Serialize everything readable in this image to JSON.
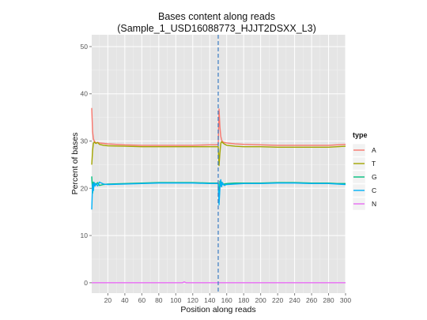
{
  "chart_data": {
    "type": "line",
    "title": "Bases content along reads",
    "subtitle": "(Sample_1_USD16088773_HJJT2DSXX_L3)",
    "xlabel": "Position along reads",
    "ylabel": "Percent of bases",
    "xlim": [
      1,
      300
    ],
    "ylim": [
      -2.2,
      52.5
    ],
    "x_ticks": [
      20,
      40,
      60,
      80,
      100,
      120,
      140,
      160,
      180,
      200,
      220,
      240,
      260,
      280,
      300
    ],
    "y_ticks": [
      0,
      10,
      20,
      30,
      40,
      50
    ],
    "grid": true,
    "legend_title": "type",
    "legend_position": "right",
    "vline_x": 150,
    "series": [
      {
        "name": "A",
        "color": "#F8766D",
        "x": [
          1,
          2,
          3,
          4,
          5,
          6,
          8,
          10,
          15,
          20,
          40,
          60,
          80,
          100,
          120,
          140,
          148,
          150,
          151,
          152,
          153,
          154,
          155,
          157,
          160,
          170,
          180,
          200,
          220,
          240,
          260,
          280,
          290,
          300
        ],
        "values": [
          37,
          32,
          30.5,
          30,
          29.8,
          29.6,
          29.7,
          29.6,
          29.5,
          29.4,
          29.2,
          29.1,
          29.1,
          29.1,
          29.1,
          29.2,
          29.2,
          29.3,
          36.8,
          33,
          31,
          30.2,
          29.9,
          29.7,
          29.6,
          29.4,
          29.3,
          29.2,
          29.1,
          29.1,
          29.1,
          29.1,
          29.2,
          29.3
        ]
      },
      {
        "name": "T",
        "color": "#A3A500",
        "x": [
          1,
          2,
          3,
          4,
          5,
          6,
          8,
          10,
          15,
          20,
          40,
          60,
          80,
          100,
          120,
          140,
          148,
          150,
          151,
          152,
          153,
          154,
          155,
          157,
          160,
          170,
          180,
          200,
          220,
          240,
          260,
          280,
          290,
          300
        ],
        "values": [
          25,
          28,
          29.5,
          29.8,
          29.6,
          29.5,
          29.7,
          29.3,
          29.1,
          29,
          28.9,
          28.8,
          28.8,
          28.8,
          28.8,
          28.8,
          28.8,
          28.8,
          24.8,
          27.5,
          29.5,
          29.9,
          29.7,
          29.4,
          29.1,
          28.9,
          28.8,
          28.8,
          28.7,
          28.7,
          28.7,
          28.7,
          28.8,
          28.9
        ]
      },
      {
        "name": "G",
        "color": "#00BF7D",
        "x": [
          1,
          2,
          3,
          4,
          5,
          6,
          8,
          10,
          15,
          20,
          40,
          60,
          80,
          100,
          120,
          140,
          148,
          150,
          151,
          152,
          153,
          154,
          155,
          157,
          160,
          170,
          180,
          200,
          220,
          240,
          260,
          280,
          290,
          300
        ],
        "values": [
          22.5,
          19,
          21.3,
          20.5,
          21,
          20.8,
          21.2,
          20.6,
          20.8,
          20.9,
          21,
          21.1,
          21.2,
          21.2,
          21.2,
          21.1,
          21.1,
          21.1,
          17.2,
          21.5,
          20.5,
          21.3,
          20.8,
          20.9,
          21,
          21.1,
          21.1,
          21.1,
          21.2,
          21.2,
          21.1,
          21.1,
          21,
          21
        ]
      },
      {
        "name": "C",
        "color": "#00B0F6",
        "x": [
          1,
          2,
          3,
          4,
          5,
          6,
          8,
          10,
          15,
          20,
          40,
          60,
          80,
          100,
          120,
          140,
          148,
          150,
          151,
          152,
          153,
          154,
          155,
          157,
          160,
          170,
          180,
          200,
          220,
          240,
          260,
          280,
          290,
          300
        ],
        "values": [
          15.5,
          21,
          19.5,
          21.2,
          20.5,
          21,
          20.5,
          21.3,
          20.9,
          20.8,
          20.9,
          21,
          21.1,
          21.1,
          21.1,
          21,
          21,
          21,
          16.5,
          20,
          21.8,
          20.3,
          21.2,
          20.6,
          20.8,
          20.9,
          21,
          21,
          21.1,
          21.1,
          21,
          21,
          20.9,
          20.8
        ]
      },
      {
        "name": "N",
        "color": "#E76BF3",
        "x": [
          1,
          50,
          100,
          108,
          110,
          112,
          150,
          200,
          250,
          300
        ],
        "values": [
          0,
          0,
          0,
          0,
          0.2,
          0,
          0,
          0,
          0,
          0
        ]
      }
    ]
  }
}
